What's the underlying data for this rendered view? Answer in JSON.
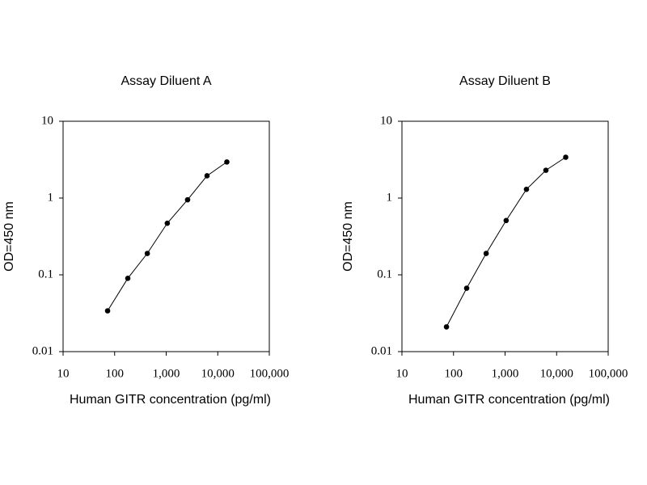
{
  "chart_data": [
    {
      "type": "line",
      "title": "Assay Diluent A",
      "xlabel": "Human GITR concentration (pg/ml)",
      "ylabel": "OD=450 nm",
      "log_x": true,
      "log_y": true,
      "x": [
        73,
        180,
        430,
        1050,
        2600,
        6200,
        15000
      ],
      "series": [
        {
          "color": "#000000",
          "values": [
            0.034,
            0.09,
            0.19,
            0.47,
            0.95,
            1.95,
            2.95
          ]
        }
      ],
      "xlim": [
        10,
        100000
      ],
      "xticks": [
        10,
        100,
        {
          "value": 1000,
          "label": "1,000"
        },
        {
          "value": 10000,
          "label": "10,000"
        },
        {
          "value": 100000,
          "label": "100,000"
        }
      ],
      "ylim": [
        0.01,
        10
      ],
      "yticks": [
        0.01,
        0.1,
        1,
        10
      ]
    },
    {
      "type": "line",
      "title": "Assay Diluent B",
      "xlabel": "Human GITR concentration (pg/ml)",
      "ylabel": "OD=450 nm",
      "log_x": true,
      "log_y": true,
      "x": [
        73,
        180,
        430,
        1050,
        2600,
        6200,
        15000
      ],
      "series": [
        {
          "color": "#000000",
          "values": [
            0.021,
            0.067,
            0.19,
            0.51,
            1.3,
            2.3,
            3.4
          ]
        }
      ],
      "xlim": [
        10,
        100000
      ],
      "xticks": [
        10,
        100,
        {
          "value": 1000,
          "label": "1,000"
        },
        {
          "value": 10000,
          "label": "10,000"
        },
        {
          "value": 100000,
          "label": "100,000"
        }
      ],
      "ylim": [
        0.01,
        10
      ],
      "yticks": [
        0.01,
        0.1,
        1,
        10
      ]
    }
  ]
}
